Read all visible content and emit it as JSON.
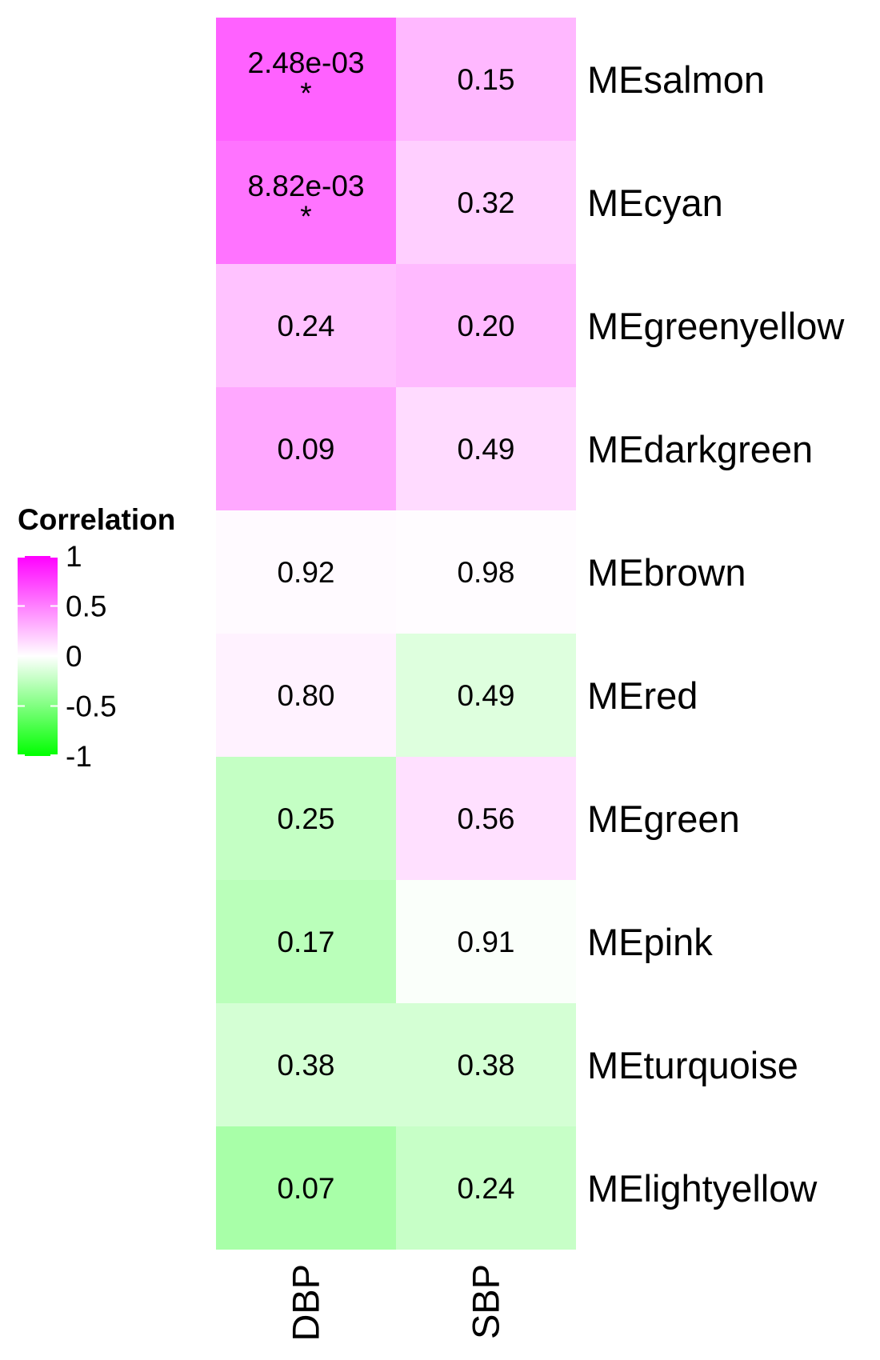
{
  "chart_data": {
    "type": "heatmap",
    "columns": [
      "DBP",
      "SBP"
    ],
    "rows": [
      "MEsalmon",
      "MEcyan",
      "MEgreenyellow",
      "MEdarkgreen",
      "MEbrown",
      "MEred",
      "MEgreen",
      "MEpink",
      "MEturquoise",
      "MElightyellow"
    ],
    "cells": [
      [
        {
          "corr": 0.62,
          "label": "2.48e-03",
          "star": "*"
        },
        {
          "corr": 0.28,
          "label": "0.15",
          "star": ""
        }
      ],
      [
        {
          "corr": 0.55,
          "label": "8.82e-03",
          "star": "*"
        },
        {
          "corr": 0.19,
          "label": "0.32",
          "star": ""
        }
      ],
      [
        {
          "corr": 0.24,
          "label": "0.24",
          "star": ""
        },
        {
          "corr": 0.27,
          "label": "0.20",
          "star": ""
        }
      ],
      [
        {
          "corr": 0.34,
          "label": "0.09",
          "star": ""
        },
        {
          "corr": 0.14,
          "label": "0.49",
          "star": ""
        }
      ],
      [
        {
          "corr": 0.02,
          "label": "0.92",
          "star": ""
        },
        {
          "corr": 0.01,
          "label": "0.98",
          "star": ""
        }
      ],
      [
        {
          "corr": 0.05,
          "label": "0.80",
          "star": ""
        },
        {
          "corr": -0.13,
          "label": "0.49",
          "star": ""
        }
      ],
      [
        {
          "corr": -0.23,
          "label": "0.25",
          "star": ""
        },
        {
          "corr": 0.12,
          "label": "0.56",
          "star": ""
        }
      ],
      [
        {
          "corr": -0.27,
          "label": "0.17",
          "star": ""
        },
        {
          "corr": -0.02,
          "label": "0.91",
          "star": ""
        }
      ],
      [
        {
          "corr": -0.17,
          "label": "0.38",
          "star": ""
        },
        {
          "corr": -0.17,
          "label": "0.38",
          "star": ""
        }
      ],
      [
        {
          "corr": -0.34,
          "label": "0.07",
          "star": ""
        },
        {
          "corr": -0.22,
          "label": "0.24",
          "star": ""
        }
      ]
    ],
    "legend": {
      "title": "Correlation",
      "ticks": [
        {
          "value": 1,
          "label": "1"
        },
        {
          "value": 0.5,
          "label": "0.5"
        },
        {
          "value": 0,
          "label": "0"
        },
        {
          "value": -0.5,
          "label": "-0.5"
        },
        {
          "value": -1,
          "label": "-1"
        }
      ],
      "range": [
        -1,
        1
      ],
      "placement": "left"
    },
    "colors": {
      "high": "#ff00ff",
      "mid": "#ffffff",
      "low": "#00ff00"
    }
  }
}
